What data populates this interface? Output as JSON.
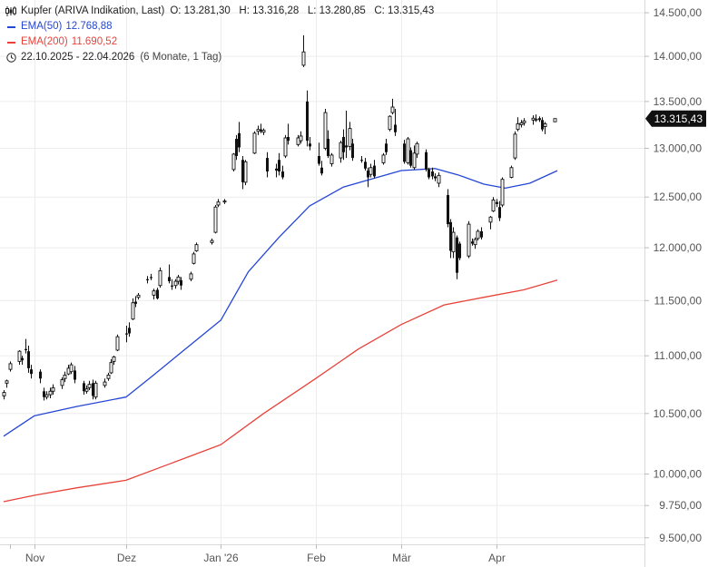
{
  "header": {
    "instrument": "Kupfer (ARIVA Indikation, Last)",
    "ohlc": "O: 13.281,30   H: 13.316,28   L: 13.280,85   C: 13.315,43",
    "range": "22.10.2025 - 22.04.2026",
    "range_detail": "(6 Monate, 1 Tag)"
  },
  "colors": {
    "ema50": "#2546d6",
    "ema200": "#e8433a",
    "candle": "#111111",
    "grid": "#ececec",
    "last_label_bg": "#111111"
  },
  "chart_data": {
    "type": "line",
    "xlabel": "",
    "ylabel": "",
    "x_tick_labels": [
      "Nov",
      "Dez",
      "Jan '26",
      "Feb",
      "Mär",
      "Apr"
    ],
    "y_tick_values": [
      9500,
      9750,
      10000,
      10500,
      11000,
      11500,
      12000,
      12500,
      13000,
      13500,
      14000,
      14500
    ],
    "y_tick_labels": [
      "9.500,00",
      "9.750,00",
      "10.000,00",
      "10.500,00",
      "11.000,00",
      "11.500,00",
      "12.000,00",
      "12.500,00",
      "13.000,00",
      "13.500,00",
      "14.000,00",
      "14.500,00"
    ],
    "scale": "log",
    "ylim": [
      9450,
      14650
    ],
    "date_range": [
      "2025-10-22",
      "2026-04-22"
    ],
    "x_ticks": [
      "2025-11-01",
      "2025-12-01",
      "2026-01-01",
      "2026-02-01",
      "2026-03-01",
      "2026-04-01"
    ],
    "last_value_label": "13.315,43",
    "grid": true,
    "series": [
      {
        "name": "EMA(50)",
        "legend_value": "12.768,88",
        "color": "#2546d6",
        "points": [
          [
            "2025-10-22",
            10310
          ],
          [
            "2025-11-01",
            10480
          ],
          [
            "2025-11-15",
            10560
          ],
          [
            "2025-12-01",
            10640
          ],
          [
            "2025-12-10",
            10830
          ],
          [
            "2025-12-20",
            11050
          ],
          [
            "2026-01-01",
            11320
          ],
          [
            "2026-01-10",
            11770
          ],
          [
            "2026-01-20",
            12100
          ],
          [
            "2026-01-30",
            12410
          ],
          [
            "2026-02-10",
            12600
          ],
          [
            "2026-02-20",
            12690
          ],
          [
            "2026-03-01",
            12770
          ],
          [
            "2026-03-12",
            12790
          ],
          [
            "2026-03-20",
            12720
          ],
          [
            "2026-03-28",
            12630
          ],
          [
            "2026-04-04",
            12590
          ],
          [
            "2026-04-12",
            12640
          ],
          [
            "2026-04-21",
            12768.88
          ]
        ]
      },
      {
        "name": "EMA(200)",
        "legend_value": "11.690,52",
        "color": "#e8433a",
        "points": [
          [
            "2025-10-22",
            9780
          ],
          [
            "2025-11-01",
            9830
          ],
          [
            "2025-11-15",
            9890
          ],
          [
            "2025-12-01",
            9950
          ],
          [
            "2025-12-15",
            10080
          ],
          [
            "2026-01-01",
            10240
          ],
          [
            "2026-01-15",
            10500
          ],
          [
            "2026-02-01",
            10800
          ],
          [
            "2026-02-15",
            11060
          ],
          [
            "2026-03-01",
            11280
          ],
          [
            "2026-03-15",
            11460
          ],
          [
            "2026-03-28",
            11530
          ],
          [
            "2026-04-10",
            11600
          ],
          [
            "2026-04-21",
            11690.52
          ]
        ]
      }
    ],
    "candles": [
      [
        "2025-10-22",
        10650,
        10700,
        10620,
        10680
      ],
      [
        "2025-10-23",
        10760,
        10790,
        10720,
        10780
      ],
      [
        "2025-10-24",
        10880,
        10950,
        10860,
        10930
      ],
      [
        "2025-10-27",
        10950,
        11050,
        10920,
        11040
      ],
      [
        "2025-10-28",
        10980,
        11000,
        10920,
        10960
      ],
      [
        "2025-10-29",
        11060,
        11150,
        11020,
        11050
      ],
      [
        "2025-10-30",
        11040,
        11090,
        10850,
        10890
      ],
      [
        "2025-10-31",
        10880,
        10920,
        10800,
        10840
      ],
      [
        "2025-11-03",
        10860,
        10880,
        10760,
        10800
      ],
      [
        "2025-11-04",
        10690,
        10720,
        10610,
        10640
      ],
      [
        "2025-11-05",
        10640,
        10690,
        10620,
        10660
      ],
      [
        "2025-11-06",
        10660,
        10720,
        10630,
        10690
      ],
      [
        "2025-11-07",
        10690,
        10750,
        10660,
        10720
      ],
      [
        "2025-11-10",
        10740,
        10810,
        10710,
        10790
      ],
      [
        "2025-11-11",
        10800,
        10860,
        10770,
        10830
      ],
      [
        "2025-11-12",
        10840,
        10920,
        10830,
        10890
      ],
      [
        "2025-11-13",
        10860,
        10940,
        10840,
        10920
      ],
      [
        "2025-11-14",
        10870,
        10910,
        10760,
        10790
      ],
      [
        "2025-11-17",
        10760,
        10780,
        10660,
        10690
      ],
      [
        "2025-11-18",
        10690,
        10740,
        10670,
        10710
      ],
      [
        "2025-11-19",
        10720,
        10780,
        10700,
        10750
      ],
      [
        "2025-11-20",
        10760,
        10790,
        10620,
        10650
      ],
      [
        "2025-11-21",
        10640,
        10780,
        10620,
        10760
      ],
      [
        "2025-11-24",
        10740,
        10800,
        10720,
        10770
      ],
      [
        "2025-11-25",
        10800,
        10850,
        10780,
        10830
      ],
      [
        "2025-11-26",
        10850,
        10970,
        10840,
        10940
      ],
      [
        "2025-11-27",
        10950,
        11000,
        10920,
        10990
      ],
      [
        "2025-11-28",
        11050,
        11190,
        11040,
        11170
      ],
      [
        "2025-12-01",
        11200,
        11270,
        11120,
        11190
      ],
      [
        "2025-12-02",
        11250,
        11300,
        11170,
        11200
      ],
      [
        "2025-12-03",
        11330,
        11520,
        11320,
        11480
      ],
      [
        "2025-12-04",
        11490,
        11540,
        11440,
        11470
      ],
      [
        "2025-12-05",
        11530,
        11570,
        11510,
        11550
      ],
      [
        "2025-12-08",
        11700,
        11730,
        11660,
        11690
      ],
      [
        "2025-12-09",
        11720,
        11750,
        11690,
        11710
      ],
      [
        "2025-12-10",
        11550,
        11610,
        11510,
        11590
      ],
      [
        "2025-12-11",
        11600,
        11620,
        11510,
        11520
      ],
      [
        "2025-12-12",
        11640,
        11810,
        11620,
        11780
      ],
      [
        "2025-12-15",
        11720,
        11840,
        11660,
        11680
      ],
      [
        "2025-12-16",
        11640,
        11700,
        11600,
        11630
      ],
      [
        "2025-12-17",
        11640,
        11700,
        11610,
        11680
      ],
      [
        "2025-12-18",
        11680,
        11740,
        11650,
        11720
      ],
      [
        "2025-12-19",
        11690,
        11720,
        11600,
        11640
      ],
      [
        "2025-12-22",
        11700,
        11770,
        11680,
        11750
      ],
      [
        "2025-12-23",
        11850,
        11960,
        11840,
        11940
      ],
      [
        "2025-12-24",
        11970,
        12050,
        11960,
        12030
      ],
      [
        "2025-12-29",
        12050,
        12090,
        12030,
        12070
      ],
      [
        "2025-12-30",
        12150,
        12420,
        12140,
        12400
      ],
      [
        "2025-12-31",
        12420,
        12480,
        12400,
        12450
      ],
      [
        "2026-01-02",
        12450,
        12480,
        12430,
        12460
      ],
      [
        "2026-01-05",
        12780,
        12950,
        12760,
        12940
      ],
      [
        "2026-01-06",
        13100,
        13140,
        12880,
        12920
      ],
      [
        "2026-01-07",
        13160,
        13280,
        12960,
        13010
      ],
      [
        "2026-01-08",
        12880,
        12920,
        12580,
        12650
      ],
      [
        "2026-01-09",
        12650,
        12880,
        12620,
        12860
      ],
      [
        "2026-01-12",
        12950,
        13180,
        12940,
        13160
      ],
      [
        "2026-01-13",
        13180,
        13240,
        13140,
        13200
      ],
      [
        "2026-01-14",
        13200,
        13260,
        13160,
        13180
      ],
      [
        "2026-01-15",
        13170,
        13210,
        13140,
        13190
      ],
      [
        "2026-01-16",
        12900,
        12960,
        12700,
        12760
      ],
      [
        "2026-01-19",
        12790,
        12840,
        12700,
        12770
      ],
      [
        "2026-01-20",
        12880,
        12950,
        12720,
        12760
      ],
      [
        "2026-01-21",
        12760,
        12820,
        12680,
        12700
      ],
      [
        "2026-01-22",
        12920,
        13140,
        12900,
        13110
      ],
      [
        "2026-01-23",
        13120,
        13260,
        13040,
        13080
      ],
      [
        "2026-01-26",
        13040,
        13140,
        13020,
        13110
      ],
      [
        "2026-01-27",
        13080,
        13180,
        13050,
        13130
      ],
      [
        "2026-01-28",
        13900,
        14240,
        13880,
        14050
      ],
      [
        "2026-01-29",
        13500,
        13620,
        13020,
        13080
      ],
      [
        "2026-01-30",
        13050,
        13120,
        12980,
        13020
      ],
      [
        "2026-02-02",
        12920,
        13060,
        12820,
        12840
      ],
      [
        "2026-02-03",
        12800,
        12870,
        12720,
        12740
      ],
      [
        "2026-02-04",
        13000,
        13420,
        12980,
        13380
      ],
      [
        "2026-02-05",
        13100,
        13190,
        12900,
        12920
      ],
      [
        "2026-02-06",
        12840,
        12950,
        12810,
        12930
      ],
      [
        "2026-02-09",
        12900,
        13080,
        12850,
        13060
      ],
      [
        "2026-02-10",
        13120,
        13200,
        12880,
        12960
      ],
      [
        "2026-02-11",
        13030,
        13400,
        12900,
        13010
      ],
      [
        "2026-02-12",
        13020,
        13280,
        12980,
        13210
      ],
      [
        "2026-02-13",
        13050,
        13100,
        12870,
        12900
      ],
      [
        "2026-02-16",
        12880,
        12920,
        12850,
        12870
      ],
      [
        "2026-02-17",
        12860,
        12900,
        12770,
        12790
      ],
      [
        "2026-02-18",
        12770,
        12800,
        12600,
        12700
      ],
      [
        "2026-02-19",
        12730,
        12840,
        12700,
        12800
      ],
      [
        "2026-02-20",
        12820,
        12880,
        12690,
        12710
      ],
      [
        "2026-02-23",
        12850,
        12950,
        12830,
        12930
      ],
      [
        "2026-02-24",
        13050,
        13100,
        12930,
        12960
      ],
      [
        "2026-02-25",
        13200,
        13350,
        13180,
        13340
      ],
      [
        "2026-02-26",
        13380,
        13530,
        13360,
        13440
      ],
      [
        "2026-02-27",
        13250,
        13420,
        13130,
        13170
      ],
      [
        "2026-03-02",
        13050,
        13090,
        12840,
        12860
      ],
      [
        "2026-03-03",
        12850,
        13120,
        12830,
        13100
      ],
      [
        "2026-03-04",
        12980,
        13010,
        12800,
        12820
      ],
      [
        "2026-03-05",
        12800,
        13030,
        12780,
        12950
      ],
      [
        "2026-03-06",
        12940,
        13070,
        12900,
        13050
      ],
      [
        "2026-03-09",
        12960,
        12990,
        12760,
        12780
      ],
      [
        "2026-03-10",
        12780,
        12800,
        12680,
        12700
      ],
      [
        "2026-03-11",
        12760,
        12800,
        12680,
        12710
      ],
      [
        "2026-03-12",
        12710,
        12740,
        12660,
        12690
      ],
      [
        "2026-03-13",
        12640,
        12750,
        12600,
        12720
      ],
      [
        "2026-03-16",
        12520,
        12580,
        12200,
        12230
      ],
      [
        "2026-03-17",
        12250,
        12280,
        11900,
        11970
      ],
      [
        "2026-03-18",
        11960,
        12200,
        11900,
        12150
      ],
      [
        "2026-03-19",
        12100,
        12120,
        11700,
        11760
      ],
      [
        "2026-03-20",
        12040,
        12060,
        11880,
        11900
      ],
      [
        "2026-03-23",
        11920,
        12260,
        11900,
        12230
      ],
      [
        "2026-03-24",
        12060,
        12090,
        12020,
        12040
      ],
      [
        "2026-03-25",
        12030,
        12100,
        11990,
        12080
      ],
      [
        "2026-03-26",
        12090,
        12180,
        12070,
        12160
      ],
      [
        "2026-03-27",
        12160,
        12200,
        12080,
        12100
      ],
      [
        "2026-03-30",
        12250,
        12310,
        12180,
        12300
      ],
      [
        "2026-03-31",
        12360,
        12500,
        12350,
        12470
      ],
      [
        "2026-04-01",
        12450,
        12480,
        12400,
        12430
      ],
      [
        "2026-04-02",
        12400,
        12460,
        12260,
        12290
      ],
      [
        "2026-04-03",
        12420,
        12700,
        12400,
        12680
      ],
      [
        "2026-04-06",
        12700,
        12820,
        12690,
        12800
      ],
      [
        "2026-04-07",
        12900,
        13180,
        12880,
        13150
      ],
      [
        "2026-04-08",
        13200,
        13330,
        13180,
        13260
      ],
      [
        "2026-04-09",
        13250,
        13300,
        13220,
        13270
      ],
      [
        "2026-04-10",
        13270,
        13320,
        13240,
        13290
      ],
      [
        "2026-04-13",
        13300,
        13350,
        13250,
        13320
      ],
      [
        "2026-04-14",
        13300,
        13360,
        13280,
        13310
      ],
      [
        "2026-04-15",
        13320,
        13340,
        13280,
        13300
      ],
      [
        "2026-04-16",
        13300,
        13330,
        13180,
        13200
      ],
      [
        "2026-04-17",
        13230,
        13280,
        13150,
        13260
      ],
      [
        "2026-04-20",
        13281.3,
        13316.28,
        13280.85,
        13315.43
      ]
    ]
  }
}
